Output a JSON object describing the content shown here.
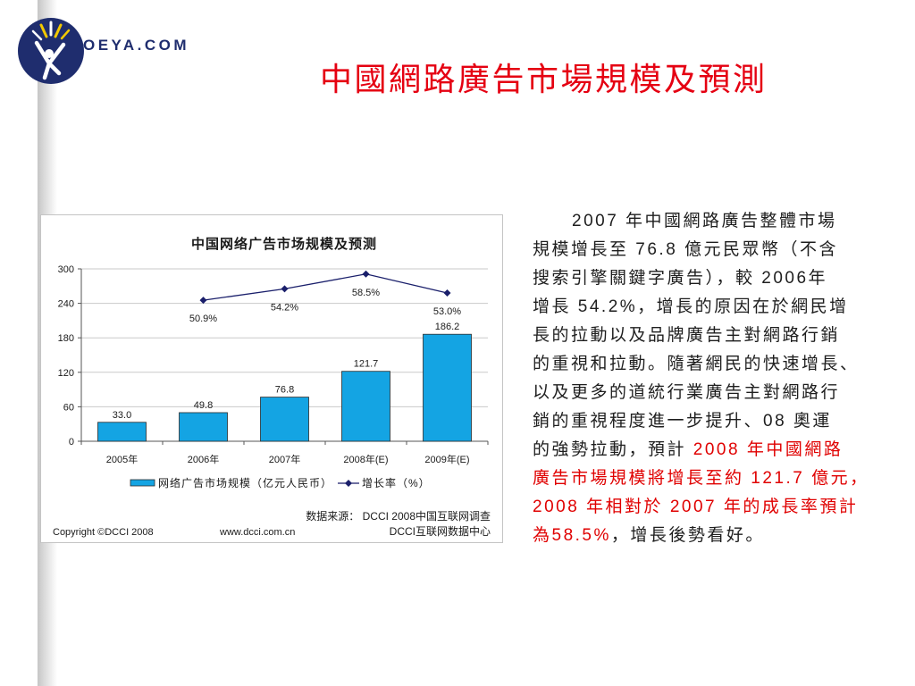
{
  "slide": {
    "logo_text": "OEYA.COM",
    "title": "中國網路廣告市場規模及預測"
  },
  "colors": {
    "title": "#e50012",
    "emphasis": "#e00000",
    "text": "#1e1e1e",
    "logo": "#1f2d6e",
    "logo_accent": "#f2c800",
    "bar": "#14a4e3",
    "line": "#1a1f6b"
  },
  "chart_data": {
    "type": "bar",
    "title": "中国网络广告市场规模及预测",
    "categories": [
      "2005年",
      "2006年",
      "2007年",
      "2008年(E)",
      "2009年(E)"
    ],
    "series": [
      {
        "name": "网络广告市场规模（亿元人民币）",
        "type": "bar",
        "values": [
          33.0,
          49.8,
          76.8,
          121.7,
          186.2
        ],
        "labels": [
          "33.0",
          "49.8",
          "76.8",
          "121.7",
          "186.2"
        ]
      },
      {
        "name": "增长率（%）",
        "type": "line",
        "axis": "secondary",
        "values": [
          null,
          50.9,
          54.2,
          58.5,
          53.0
        ],
        "labels": [
          null,
          "50.9%",
          "54.2%",
          "58.5%",
          "53.0%"
        ]
      }
    ],
    "y_ticks": [
      0,
      60,
      120,
      180,
      240,
      300
    ],
    "ylim": [
      0,
      300
    ],
    "y2lim": [
      10,
      60
    ],
    "grid": true,
    "legend": "bottom",
    "source": "数据来源： DCCI 2008中国互联网调查",
    "copyright": "Copyright ©DCCI 2008",
    "website": "www.dcci.com.cn",
    "publisher": "DCCI互联网数据中心"
  },
  "body": {
    "lines": [
      [
        "2007 年中國網路廣告整體市場"
      ],
      [
        "規模增長至 76.8 億元民眾幣（不含"
      ],
      [
        "搜索引擎關鍵字廣告），較 2006年"
      ],
      [
        "增長 54.2%，增長的原因在於網民增"
      ],
      [
        "長的拉動以及品牌廣告主對網路行銷"
      ],
      [
        "的重視和拉動。隨著網民的快速增長、"
      ],
      [
        "以及更多的道統行業廣告主對網路行"
      ],
      [
        "銷的重視程度進一步提升、08 奧運"
      ],
      [
        "的強勢拉動，預計 ",
        "2008 年中國網路"
      ],
      [
        "廣告市場規模將增長至約 121.7 億元，"
      ],
      [
        "2008 年相對於 2007 年的成長率預計"
      ],
      [
        "為58.5%",
        "，增長後勢看好。"
      ]
    ]
  }
}
